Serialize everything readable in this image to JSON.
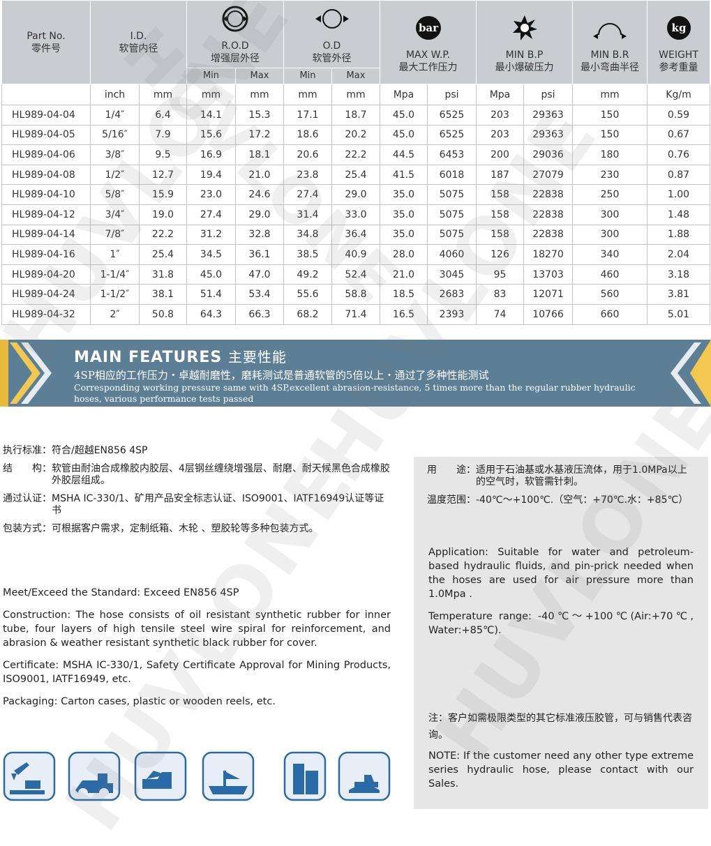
{
  "watermark": "HUVLONE",
  "table": {
    "header": {
      "part_no": {
        "en": "Part No.",
        "cn": "零件号"
      },
      "id": {
        "en": "I.D.",
        "cn": "软管内径"
      },
      "rod": {
        "en": "R.O.D",
        "cn": "增强层外径",
        "min": "Min",
        "max": "Max"
      },
      "od": {
        "en": "O.D",
        "cn": "软管外径",
        "min": "Min",
        "max": "Max"
      },
      "wp": {
        "icon": "bar",
        "en": "MAX W.P.",
        "cn": "最大工作压力"
      },
      "bp": {
        "en": "MIN B.P",
        "cn": "最小爆破压力"
      },
      "br": {
        "en": "MIN B.R",
        "cn": "最小弯曲半径"
      },
      "weight": {
        "icon": "kg",
        "en": "WEIGHT",
        "cn": "参考重量"
      }
    },
    "units": [
      "inch",
      "mm",
      "mm",
      "mm",
      "mm",
      "mm",
      "Mpa",
      "psi",
      "Mpa",
      "psi",
      "mm",
      "Kg/m"
    ],
    "rows": [
      [
        "HL989-04-04",
        "1/4″",
        "6.4",
        "14.1",
        "15.3",
        "17.1",
        "18.7",
        "45.0",
        "6525",
        "203",
        "29363",
        "150",
        "0.59"
      ],
      [
        "HL989-04-05",
        "5/16″",
        "7.9",
        "15.6",
        "17.2",
        "18.6",
        "20.2",
        "45.0",
        "6525",
        "203",
        "29363",
        "150",
        "0.67"
      ],
      [
        "HL989-04-06",
        "3/8″",
        "9.5",
        "16.9",
        "18.1",
        "20.6",
        "22.2",
        "44.5",
        "6453",
        "200",
        "29036",
        "180",
        "0.76"
      ],
      [
        "HL989-04-08",
        "1/2″",
        "12.7",
        "19.4",
        "21.0",
        "23.8",
        "25.4",
        "41.5",
        "6018",
        "187",
        "27079",
        "230",
        "0.87"
      ],
      [
        "HL989-04-10",
        "5/8″",
        "15.9",
        "23.0",
        "24.6",
        "27.4",
        "29.0",
        "35.0",
        "5075",
        "158",
        "22838",
        "250",
        "1.00"
      ],
      [
        "HL989-04-12",
        "3/4″",
        "19.0",
        "27.4",
        "29.0",
        "31.4",
        "33.0",
        "35.0",
        "5075",
        "158",
        "22838",
        "300",
        "1.48"
      ],
      [
        "HL989-04-14",
        "7/8″",
        "22.2",
        "31.2",
        "32.8",
        "34.8",
        "36.4",
        "35.0",
        "5075",
        "158",
        "22838",
        "300",
        "1.88"
      ],
      [
        "HL989-04-16",
        "1″",
        "25.4",
        "34.5",
        "36.1",
        "38.5",
        "40.9",
        "28.0",
        "4060",
        "126",
        "18270",
        "340",
        "2.04"
      ],
      [
        "HL989-04-20",
        "1-1/4″",
        "31.8",
        "45.0",
        "47.0",
        "49.2",
        "52.4",
        "21.0",
        "3045",
        "95",
        "13703",
        "460",
        "3.18"
      ],
      [
        "HL989-04-24",
        "1-1/2″",
        "38.1",
        "51.4",
        "53.4",
        "55.6",
        "58.8",
        "18.5",
        "2683",
        "83",
        "12071",
        "560",
        "3.81"
      ],
      [
        "HL989-04-32",
        "2″",
        "50.8",
        "64.3",
        "66.3",
        "68.2",
        "71.4",
        "16.5",
        "2393",
        "74",
        "10766",
        "660",
        "5.01"
      ]
    ]
  },
  "features": {
    "title": "MAIN FEATURES",
    "title_cn": "主要性能",
    "cn": "4SP相应的工作压力・卓越耐磨性，磨耗测试是普通软管的5倍以上・通过了多种性能测试",
    "en": "Corresponding working pressure same with 4SP,excellent abrasion-resistance, 5 times more than the regular rubber hydraulic hoses, various performance tests passed"
  },
  "left_cn": [
    {
      "label": "执行标准：",
      "text": "符合/超越EN856 4SP"
    },
    {
      "label": "结　　构：",
      "text": "软管由耐油合成橡胶内胶层、4层钢丝缠绕增强层、耐磨、耐天候黑色合成橡胶外胶层组成。"
    },
    {
      "label": "通过认证：",
      "text": "MSHA IC-330/1、矿用产品安全标志认证、ISO9001、IATF16949认证等证书"
    },
    {
      "label": "包装方式：",
      "text": "可根据客户需求，定制纸箱、木轮 、塑胶轮等多种包装方式。"
    }
  ],
  "left_en": [
    {
      "label": "Meet/Exceed the Standard:",
      "text": "Exceed EN856 4SP"
    },
    {
      "label": "Construction:",
      "text": "The hose consists of oil resistant synthetic rubber for inner tube, four layers of high tensile steel wire spiral for reinforcement, and abrasion & weather resistant synthetic black rubber for cover."
    },
    {
      "label": "Certificate:",
      "text": "MSHA IC-330/1, Safety Certificate Approval for Mining Products, ISO9001, IATF16949, etc."
    },
    {
      "label": "Packaging:",
      "text": "Carton cases, plastic or wooden reels, etc."
    }
  ],
  "right_cn": [
    {
      "label": "用　　途：",
      "text": "适用于石油基或水基液压流体，用于1.0MPa以上的空气时，软管需针刺。"
    },
    {
      "label": "温度范围：",
      "text": "-40℃～+100℃.（空气：+70℃.水：+85℃）"
    }
  ],
  "right_en": [
    {
      "label": "Application:",
      "text": "Suitable for water and petroleum-based hydraulic fluids, and pin-prick needed when the hoses are used for air pressure more than 1.0Mpa ."
    },
    {
      "label": "Temperature range:",
      "text": "-40℃～+100℃(Air:+70℃, Water:+85℃)."
    }
  ],
  "note": {
    "cn": "注：客户如需极限类型的其它标准液压胶管，可与销售代表咨询。",
    "en": "NOTE: If the customer need any other type extreme series hydraulic hose, please contact with our Sales."
  }
}
